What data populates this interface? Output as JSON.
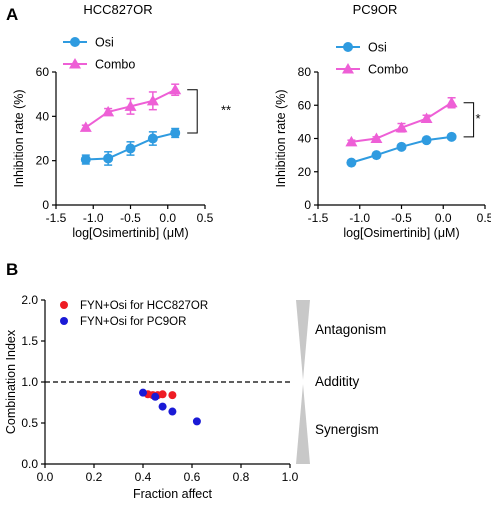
{
  "panel_labels": {
    "a": "A",
    "b": "B"
  },
  "colors": {
    "osi": "#2f9be0",
    "combo": "#ee5fd6",
    "hcc": "#ee1c24",
    "pc9": "#1a1ad6",
    "wedge": "#c8c8c8"
  },
  "chart_data": [
    {
      "type": "line",
      "title": "HCC827OR",
      "xlabel": "log[Osimertinib] (μM)",
      "ylabel": "Inhibition rate (%)",
      "xlim": [
        -1.5,
        0.5
      ],
      "ylim": [
        0,
        60
      ],
      "xticks": [
        "-1.5",
        "-1.0",
        "-0.5",
        "0.0",
        "0.5"
      ],
      "yticks": [
        "0",
        "20",
        "40",
        "60"
      ],
      "x": [
        -1.1,
        -0.8,
        -0.5,
        -0.2,
        0.1
      ],
      "series": [
        {
          "name": "Osi",
          "values": [
            20.5,
            21,
            25.5,
            30,
            32.5
          ],
          "errors": [
            2,
            3,
            3,
            3,
            2
          ],
          "marker": "circle"
        },
        {
          "name": "Combo",
          "values": [
            35,
            42,
            44.5,
            47,
            52
          ],
          "errors": [
            1,
            1.5,
            3.5,
            4,
            2.5
          ],
          "marker": "triangle"
        }
      ],
      "significance": "**",
      "legend_position": "top-left",
      "grid": false
    },
    {
      "type": "line",
      "title": "PC9OR",
      "xlabel": "log[Osimertinib] (μM)",
      "ylabel": "Inhibition rate (%)",
      "xlim": [
        -1.5,
        0.5
      ],
      "ylim": [
        0,
        80
      ],
      "xticks": [
        "-1.5",
        "-1.0",
        "-0.5",
        "0.0",
        "0.5"
      ],
      "yticks": [
        "0",
        "20",
        "40",
        "60",
        "80"
      ],
      "x": [
        -1.1,
        -0.8,
        -0.5,
        -0.2,
        0.1
      ],
      "series": [
        {
          "name": "Osi",
          "values": [
            25.5,
            30,
            35,
            39,
            41
          ],
          "errors": [
            1,
            1,
            1,
            1,
            1
          ],
          "marker": "circle"
        },
        {
          "name": "Combo",
          "values": [
            38,
            40,
            46.5,
            52,
            61.5
          ],
          "errors": [
            1,
            1,
            2.5,
            2,
            3
          ],
          "marker": "triangle"
        }
      ],
      "significance": "*",
      "legend_position": "top-left",
      "grid": false
    },
    {
      "type": "scatter",
      "xlabel": "Fraction affect",
      "ylabel": "Combination Index",
      "xlim": [
        0,
        1
      ],
      "ylim": [
        0,
        2
      ],
      "xticks": [
        "0.0",
        "0.2",
        "0.4",
        "0.6",
        "0.8",
        "1.0"
      ],
      "yticks": [
        "0.0",
        "0.5",
        "1.0",
        "1.5",
        "2.0"
      ],
      "reference_line": 1.0,
      "series": [
        {
          "name": "FYN+Osi for HCC827OR",
          "x": [
            0.42,
            0.44,
            0.46,
            0.48,
            0.52
          ],
          "y": [
            0.85,
            0.84,
            0.84,
            0.85,
            0.84
          ]
        },
        {
          "name": "FYN+Osi for PC9OR",
          "x": [
            0.4,
            0.45,
            0.48,
            0.52,
            0.62
          ],
          "y": [
            0.87,
            0.82,
            0.7,
            0.64,
            0.52
          ]
        }
      ],
      "annotations": [
        "Antagonism",
        "Additity",
        "Synergism"
      ],
      "legend_position": "top-left",
      "grid": false
    }
  ]
}
